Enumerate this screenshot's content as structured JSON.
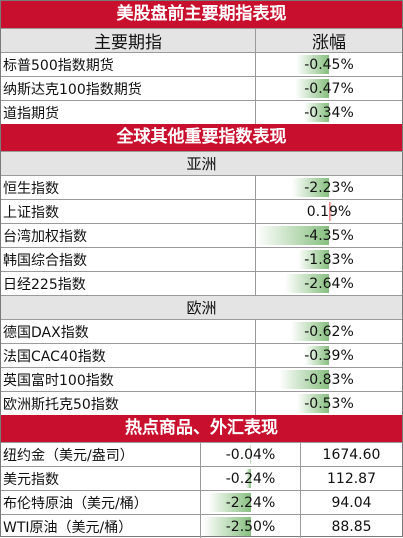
{
  "sections": {
    "us": {
      "title": "美股盘前主要期指表现",
      "header": {
        "name": "主要期指",
        "change": "涨幅"
      },
      "rows": [
        {
          "name": "标普500指数期货",
          "change": "-0.45%",
          "level": 0.45
        },
        {
          "name": "纳斯达克100指数期货",
          "change": "-0.47%",
          "level": 0.47
        },
        {
          "name": "道指期货",
          "change": "-0.34%",
          "level": 0.34
        }
      ]
    },
    "global": {
      "title": "全球其他重要指数表现",
      "asia": {
        "label": "亚洲",
        "rows": [
          {
            "name": "恒生指数",
            "change": "-2.23%",
            "level": 2.23
          },
          {
            "name": "上证指数",
            "change": "0.19%",
            "level": 0.19
          },
          {
            "name": "台湾加权指数",
            "change": "-4.35%",
            "level": 4.35
          },
          {
            "name": "韩国综合指数",
            "change": "-1.83%",
            "level": 1.83
          },
          {
            "name": "日经225指数",
            "change": "-2.64%",
            "level": 2.64
          }
        ]
      },
      "europe": {
        "label": "欧洲",
        "rows": [
          {
            "name": "德国DAX指数",
            "change": "-0.62%",
            "level": 0.62
          },
          {
            "name": "法国CAC40指数",
            "change": "-0.39%",
            "level": 0.39
          },
          {
            "name": "英国富时100指数",
            "change": "-0.83%",
            "level": 0.83
          },
          {
            "name": "欧洲斯托克50指数",
            "change": "-0.53%",
            "level": 0.53
          }
        ]
      }
    },
    "commodities": {
      "title": "热点商品、外汇表现",
      "rows": [
        {
          "name": "纽约金（美元/盎司）",
          "change": "-0.04%",
          "price": "1674.60",
          "level": 0.04
        },
        {
          "name": "美元指数",
          "change": "-0.24%",
          "price": "112.87",
          "level": 0.24
        },
        {
          "name": "布伦特原油（美元/桶）",
          "change": "-2.24%",
          "price": "94.04",
          "level": 2.24
        },
        {
          "name": "WTI原油（美元/桶）",
          "change": "-2.50%",
          "price": "88.85",
          "level": 2.5
        }
      ]
    }
  },
  "colors": {
    "banner": "#c8102e",
    "negative_bar": "#5faa55",
    "positive_bar": "#e65a5a"
  }
}
